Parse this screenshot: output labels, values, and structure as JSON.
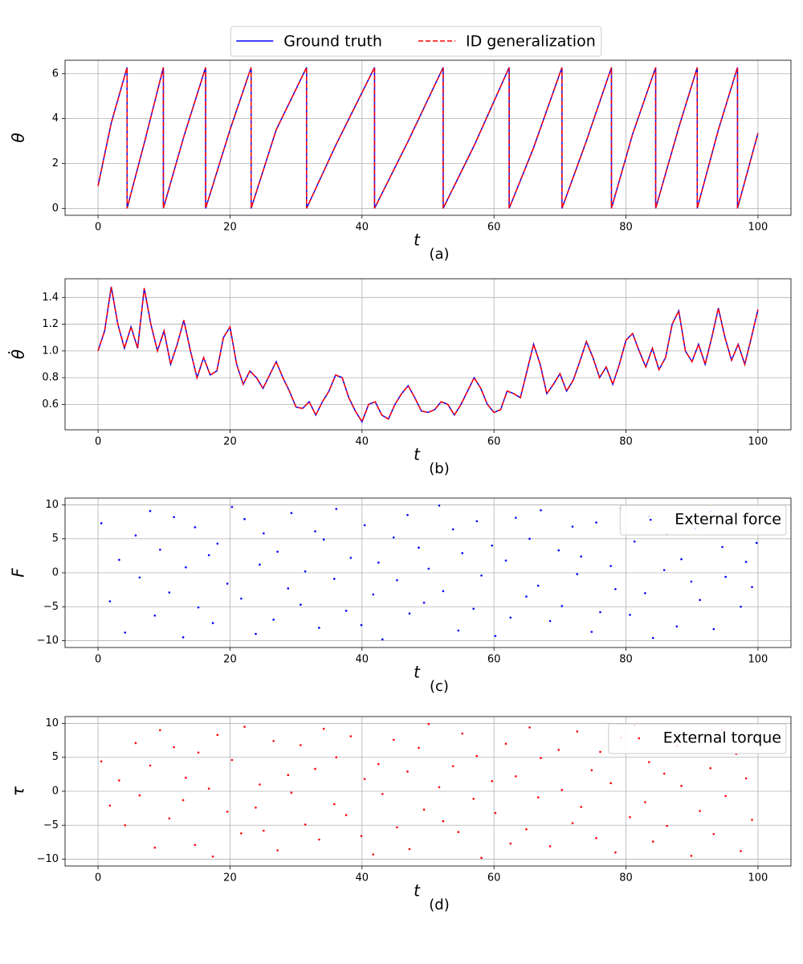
{
  "chart_data": [
    {
      "type": "line",
      "xlabel": "t",
      "ylabel": "θ",
      "caption": "(a)",
      "grid": true,
      "legend": "upper center",
      "x": [
        0,
        2,
        4.4,
        4.4,
        7,
        9.9,
        9.9,
        13,
        16.3,
        16.3,
        20,
        23.2,
        23.2,
        27,
        31.6,
        31.6,
        36,
        41.9,
        41.9,
        47,
        52.3,
        52.3,
        57,
        62.3,
        62.3,
        66,
        70.3,
        70.3,
        74,
        77.8,
        77.8,
        81,
        84.5,
        84.5,
        88,
        90.8,
        90.8,
        94,
        96.9,
        96.9,
        100
      ],
      "series": [
        {
          "name": "Ground truth",
          "color": "#0000ff",
          "linestyle": "solid",
          "values": [
            1.0,
            3.8,
            6.28,
            0,
            2.9,
            6.28,
            0,
            3.2,
            6.28,
            0,
            3.5,
            6.28,
            0,
            3.5,
            6.28,
            0,
            2.8,
            6.28,
            0,
            3.0,
            6.28,
            0,
            2.8,
            6.28,
            0,
            2.7,
            6.28,
            0,
            3.0,
            6.28,
            0,
            3.3,
            6.28,
            0,
            3.6,
            6.28,
            0,
            3.5,
            6.28,
            0,
            3.35
          ]
        },
        {
          "name": "ID generalization",
          "color": "#ff0000",
          "linestyle": "dashed",
          "values": [
            1.0,
            3.8,
            6.28,
            0,
            2.9,
            6.28,
            0,
            3.2,
            6.28,
            0,
            3.5,
            6.28,
            0,
            3.5,
            6.28,
            0,
            2.8,
            6.28,
            0,
            3.0,
            6.28,
            0,
            2.8,
            6.28,
            0,
            2.7,
            6.28,
            0,
            3.0,
            6.28,
            0,
            3.3,
            6.28,
            0,
            3.6,
            6.28,
            0,
            3.5,
            6.28,
            0,
            3.35
          ]
        }
      ],
      "xlim": [
        -5,
        105
      ],
      "ylim": [
        -0.31,
        6.6
      ],
      "xticks": [
        0,
        20,
        40,
        60,
        80,
        100
      ],
      "yticks": [
        0,
        2,
        4,
        6
      ]
    },
    {
      "type": "line",
      "xlabel": "t",
      "ylabel": "θ̇",
      "caption": "(b)",
      "grid": true,
      "x": [
        0,
        1,
        2,
        3,
        4,
        5,
        6,
        7,
        8,
        9,
        10,
        11,
        12,
        13,
        14,
        15,
        16,
        17,
        18,
        19,
        20,
        21,
        22,
        23,
        24,
        25,
        26,
        27,
        28,
        29,
        30,
        31,
        32,
        33,
        34,
        35,
        36,
        37,
        38,
        39,
        40,
        41,
        42,
        43,
        44,
        45,
        46,
        47,
        48,
        49,
        50,
        51,
        52,
        53,
        54,
        55,
        56,
        57,
        58,
        59,
        60,
        61,
        62,
        63,
        64,
        65,
        66,
        67,
        68,
        69,
        70,
        71,
        72,
        73,
        74,
        75,
        76,
        77,
        78,
        79,
        80,
        81,
        82,
        83,
        84,
        85,
        86,
        87,
        88,
        89,
        90,
        91,
        92,
        93,
        94,
        95,
        96,
        97,
        98,
        99,
        100
      ],
      "series": [
        {
          "name": "Ground truth",
          "color": "#0000ff",
          "linestyle": "solid",
          "values": [
            1.0,
            1.15,
            1.48,
            1.2,
            1.02,
            1.18,
            1.02,
            1.47,
            1.2,
            1.0,
            1.15,
            0.9,
            1.05,
            1.23,
            1.0,
            0.8,
            0.95,
            0.82,
            0.85,
            1.1,
            1.18,
            0.9,
            0.75,
            0.85,
            0.8,
            0.72,
            0.82,
            0.92,
            0.8,
            0.7,
            0.58,
            0.57,
            0.62,
            0.52,
            0.62,
            0.7,
            0.82,
            0.8,
            0.65,
            0.55,
            0.47,
            0.6,
            0.62,
            0.52,
            0.49,
            0.6,
            0.68,
            0.74,
            0.65,
            0.55,
            0.54,
            0.56,
            0.62,
            0.6,
            0.52,
            0.6,
            0.7,
            0.8,
            0.72,
            0.6,
            0.54,
            0.56,
            0.7,
            0.68,
            0.65,
            0.85,
            1.05,
            0.9,
            0.68,
            0.75,
            0.83,
            0.7,
            0.78,
            0.92,
            1.07,
            0.95,
            0.8,
            0.88,
            0.75,
            0.9,
            1.08,
            1.13,
            1.0,
            0.88,
            1.02,
            0.86,
            0.95,
            1.2,
            1.3,
            1.0,
            0.92,
            1.05,
            0.9,
            1.1,
            1.32,
            1.1,
            0.93,
            1.05,
            0.9,
            1.1,
            1.31
          ]
        },
        {
          "name": "ID generalization",
          "color": "#ff0000",
          "linestyle": "dashed",
          "values": [
            1.0,
            1.15,
            1.48,
            1.2,
            1.02,
            1.18,
            1.02,
            1.47,
            1.2,
            1.0,
            1.15,
            0.9,
            1.05,
            1.23,
            1.0,
            0.8,
            0.95,
            0.82,
            0.85,
            1.1,
            1.18,
            0.9,
            0.75,
            0.85,
            0.8,
            0.72,
            0.82,
            0.92,
            0.8,
            0.7,
            0.58,
            0.57,
            0.62,
            0.52,
            0.62,
            0.7,
            0.82,
            0.8,
            0.65,
            0.55,
            0.47,
            0.6,
            0.62,
            0.52,
            0.49,
            0.6,
            0.68,
            0.74,
            0.65,
            0.55,
            0.54,
            0.56,
            0.62,
            0.6,
            0.52,
            0.6,
            0.7,
            0.8,
            0.72,
            0.6,
            0.54,
            0.56,
            0.7,
            0.68,
            0.65,
            0.85,
            1.05,
            0.9,
            0.68,
            0.75,
            0.83,
            0.7,
            0.78,
            0.92,
            1.07,
            0.95,
            0.8,
            0.88,
            0.75,
            0.9,
            1.08,
            1.13,
            1.0,
            0.88,
            1.02,
            0.86,
            0.95,
            1.2,
            1.3,
            1.0,
            0.92,
            1.05,
            0.9,
            1.1,
            1.32,
            1.1,
            0.93,
            1.05,
            0.9,
            1.1,
            1.31
          ]
        }
      ],
      "xlim": [
        -5,
        105
      ],
      "ylim": [
        0.41,
        1.54
      ],
      "xticks": [
        0,
        20,
        40,
        60,
        80,
        100
      ],
      "yticks": [
        0.6,
        0.8,
        {
          "value": 1,
          "label": "1.0"
        },
        1.2,
        1.4
      ]
    },
    {
      "type": "scatter",
      "xlabel": "t",
      "ylabel": "F",
      "caption": "(c)",
      "grid": true,
      "legend": "upper right",
      "series": [
        {
          "name": "External force",
          "color": "#0000ff",
          "x": [
            0.5,
            1.8,
            3.2,
            4.1,
            5.7,
            6.3,
            7.9,
            8.6,
            9.4,
            10.8,
            11.5,
            12.9,
            13.3,
            14.7,
            15.2,
            16.8,
            17.4,
            18.1,
            19.6,
            20.3,
            21.7,
            22.2,
            23.9,
            24.5,
            25.1,
            26.6,
            27.2,
            28.8,
            29.3,
            30.7,
            31.4,
            32.9,
            33.5,
            34.2,
            35.8,
            36.1,
            37.6,
            38.3,
            39.9,
            40.4,
            41.7,
            42.5,
            43.1,
            44.8,
            45.3,
            46.9,
            47.2,
            48.6,
            49.4,
            50.1,
            51.7,
            52.3,
            53.8,
            54.6,
            55.2,
            56.9,
            57.4,
            58.1,
            59.7,
            60.2,
            61.8,
            62.5,
            63.3,
            64.9,
            65.4,
            66.7,
            67.1,
            68.5,
            69.8,
            70.3,
            71.9,
            72.6,
            73.2,
            74.8,
            75.5,
            76.1,
            77.7,
            78.4,
            79.2,
            80.6,
            81.3,
            82.9,
            83.5,
            84.1,
            85.8,
            86.2,
            87.7,
            88.4,
            89.9,
            90.5,
            91.2,
            92.8,
            93.3,
            94.6,
            95.1,
            96.7,
            97.4,
            98.2,
            99.1,
            99.8
          ],
          "values": [
            7.3,
            -4.2,
            1.9,
            -8.8,
            5.5,
            -0.7,
            9.1,
            -6.3,
            3.4,
            -2.9,
            8.2,
            -9.5,
            0.8,
            6.7,
            -5.1,
            2.6,
            -7.4,
            4.3,
            -1.6,
            9.7,
            -3.8,
            7.9,
            -9.0,
            1.2,
            5.8,
            -6.9,
            3.1,
            -2.3,
            8.8,
            -4.7,
            0.2,
            6.1,
            -8.1,
            4.9,
            -0.9,
            9.4,
            -5.6,
            2.2,
            -7.7,
            7.0,
            -3.2,
            1.5,
            -9.8,
            5.2,
            -1.1,
            8.5,
            -6.0,
            3.7,
            -4.4,
            0.6,
            9.9,
            -2.7,
            6.4,
            -8.5,
            2.9,
            -5.3,
            7.6,
            -0.4,
            4.0,
            -9.3,
            1.8,
            -6.6,
            8.1,
            -3.5,
            5.0,
            -1.9,
            9.2,
            -7.1,
            3.3,
            -4.9,
            6.8,
            -0.2,
            2.4,
            -8.7,
            7.4,
            -5.8,
            1.0,
            -2.4,
            9.5,
            -6.2,
            4.6,
            -3.0,
            8.3,
            -9.6,
            0.4,
            5.7,
            -7.9,
            2.0,
            -1.3,
            6.5,
            -4.0,
            9.0,
            -8.3,
            3.8,
            -0.6,
            7.1,
            -5.0,
            1.6,
            -2.1,
            4.4
          ]
        }
      ],
      "xlim": [
        -5,
        105
      ],
      "ylim": [
        -11,
        11
      ],
      "xticks": [
        0,
        20,
        40,
        60,
        80,
        100
      ],
      "yticks": [
        {
          "value": -10,
          "label": "−10"
        },
        {
          "value": -5,
          "label": "−5"
        },
        0,
        5,
        10
      ]
    },
    {
      "type": "scatter",
      "xlabel": "t",
      "ylabel": "τ",
      "caption": "(d)",
      "grid": true,
      "legend": "upper right",
      "series": [
        {
          "name": "External torque",
          "color": "#ff0000",
          "x": [
            0.5,
            1.8,
            3.2,
            4.1,
            5.7,
            6.3,
            7.9,
            8.6,
            9.4,
            10.8,
            11.5,
            12.9,
            13.3,
            14.7,
            15.2,
            16.8,
            17.4,
            18.1,
            19.6,
            20.3,
            21.7,
            22.2,
            23.9,
            24.5,
            25.1,
            26.6,
            27.2,
            28.8,
            29.3,
            30.7,
            31.4,
            32.9,
            33.5,
            34.2,
            35.8,
            36.1,
            37.6,
            38.3,
            39.9,
            40.4,
            41.7,
            42.5,
            43.1,
            44.8,
            45.3,
            46.9,
            47.2,
            48.6,
            49.4,
            50.1,
            51.7,
            52.3,
            53.8,
            54.6,
            55.2,
            56.9,
            57.4,
            58.1,
            59.7,
            60.2,
            61.8,
            62.5,
            63.3,
            64.9,
            65.4,
            66.7,
            67.1,
            68.5,
            69.8,
            70.3,
            71.9,
            72.6,
            73.2,
            74.8,
            75.5,
            76.1,
            77.7,
            78.4,
            79.2,
            80.6,
            81.3,
            82.9,
            83.5,
            84.1,
            85.8,
            86.2,
            87.7,
            88.4,
            89.9,
            90.5,
            91.2,
            92.8,
            93.3,
            94.6,
            95.1,
            96.7,
            97.4,
            98.2,
            99.1,
            99.8
          ],
          "values": [
            4.4,
            -2.1,
            1.6,
            -5.0,
            7.1,
            -0.6,
            3.8,
            -8.3,
            9.0,
            -4.0,
            6.5,
            -1.3,
            2.0,
            -7.9,
            5.7,
            0.4,
            -9.6,
            8.3,
            -3.0,
            4.6,
            -6.2,
            9.5,
            -2.4,
            1.0,
            -5.8,
            7.4,
            -8.7,
            2.4,
            -0.2,
            6.8,
            -4.9,
            3.3,
            -7.1,
            9.2,
            -1.9,
            5.0,
            -3.5,
            8.1,
            -6.6,
            1.8,
            -9.3,
            4.0,
            -0.4,
            7.6,
            -5.3,
            2.9,
            -8.5,
            6.4,
            -2.7,
            9.9,
            0.6,
            -4.4,
            3.7,
            -6.0,
            8.5,
            -1.1,
            5.2,
            -9.8,
            1.5,
            -3.2,
            7.0,
            -7.7,
            2.2,
            -5.6,
            9.4,
            -0.9,
            4.9,
            -8.1,
            6.1,
            0.2,
            -4.7,
            8.8,
            -2.3,
            3.1,
            -6.9,
            5.8,
            1.2,
            -9.0,
            7.9,
            -3.8,
            9.7,
            -1.6,
            4.3,
            -7.4,
            2.6,
            -5.1,
            6.7,
            0.8,
            -9.5,
            8.2,
            -2.9,
            3.4,
            -6.3,
            9.1,
            -0.7,
            5.5,
            -8.8,
            1.9,
            -4.2,
            7.3
          ]
        }
      ],
      "xlim": [
        -5,
        105
      ],
      "ylim": [
        -11,
        11
      ],
      "xticks": [
        0,
        20,
        40,
        60,
        80,
        100
      ],
      "yticks": [
        {
          "value": -10,
          "label": "−10"
        },
        {
          "value": -5,
          "label": "−5"
        },
        0,
        5,
        10
      ]
    }
  ]
}
